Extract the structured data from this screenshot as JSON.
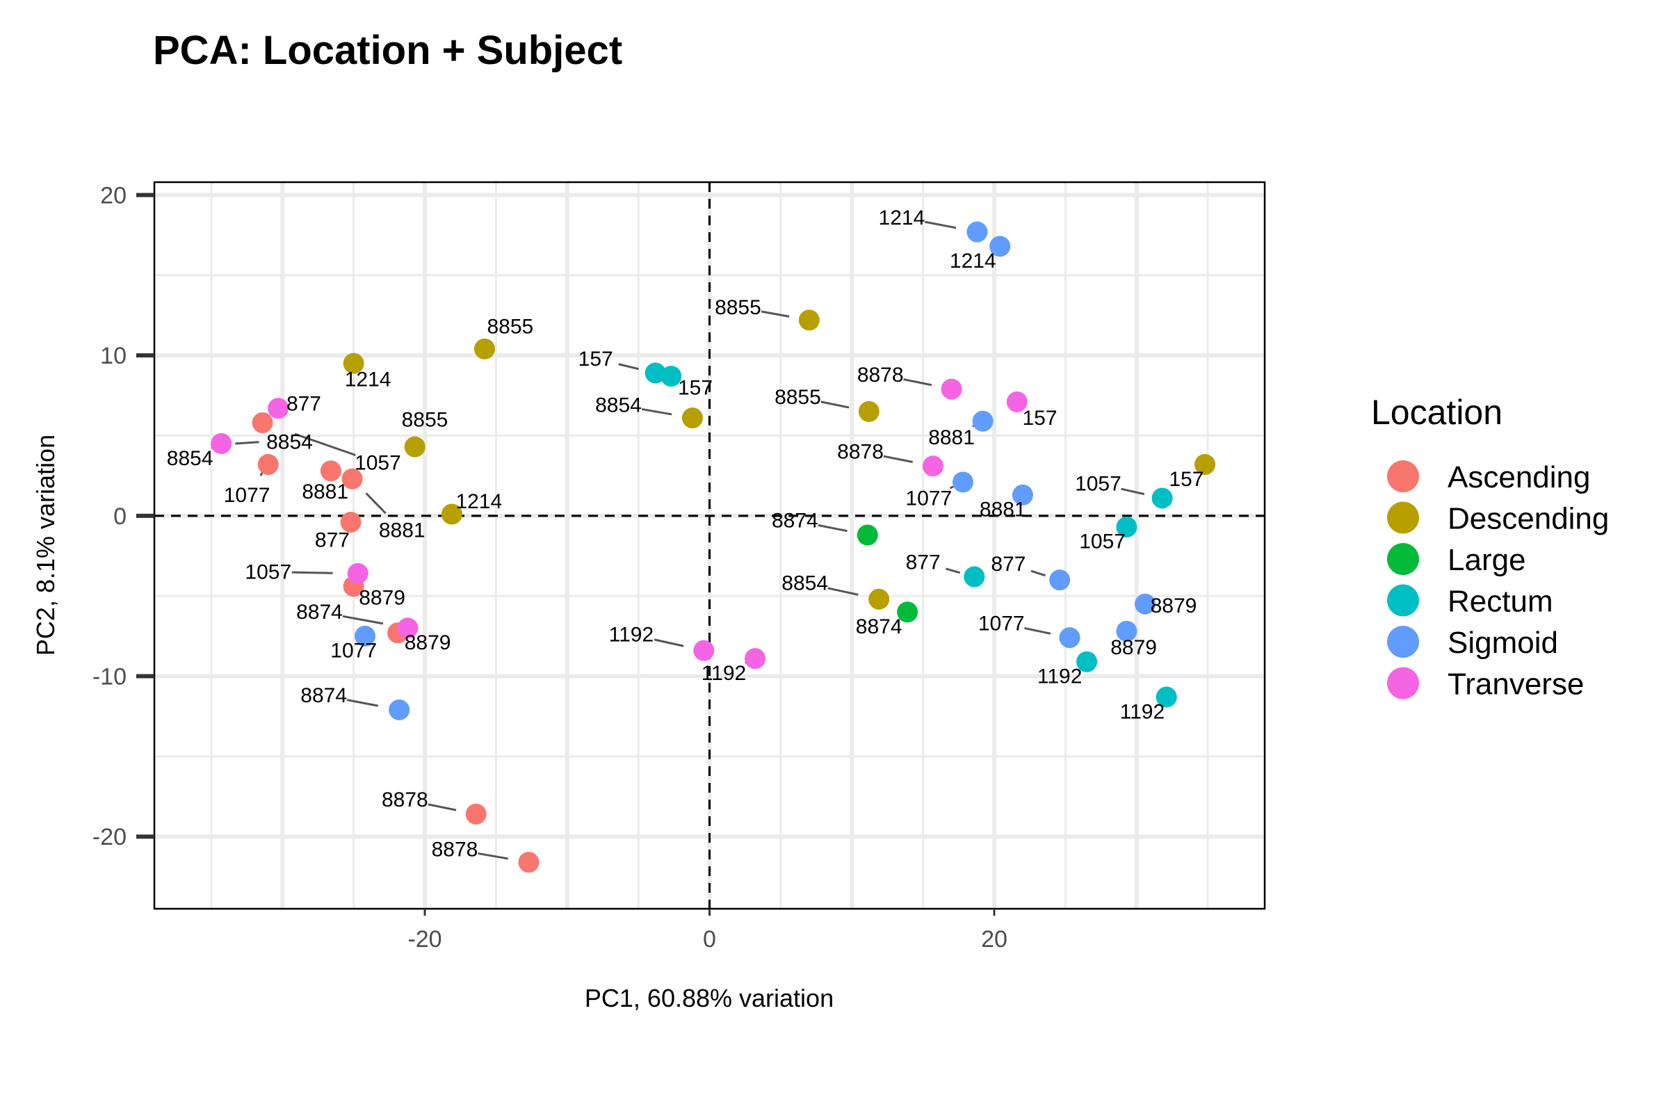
{
  "chart_data": {
    "type": "scatter",
    "title": "PCA: Location + Subject",
    "xlabel": "PC1, 60.88% variation",
    "ylabel": "PC2, 8.1% variation",
    "xlim": [
      -39,
      39
    ],
    "ylim": [
      -24.5,
      20.8
    ],
    "xticks": [
      -20,
      0,
      20
    ],
    "yticks": [
      -20,
      -10,
      0,
      10,
      20
    ],
    "grid": true,
    "reference_lines": {
      "x": 0,
      "y": 0,
      "style": "dashed"
    },
    "legend": {
      "title": "Location",
      "placement": "right",
      "entries": [
        {
          "name": "Ascending",
          "color": "#F8766D"
        },
        {
          "name": "Descending",
          "color": "#B79F00"
        },
        {
          "name": "Large",
          "color": "#00BA38"
        },
        {
          "name": "Rectum",
          "color": "#00BFC4"
        },
        {
          "name": "Sigmoid",
          "color": "#619CFF"
        },
        {
          "name": "Tranverse",
          "color": "#F564E3"
        }
      ]
    },
    "points": [
      {
        "x": -31.4,
        "y": 5.8,
        "location": "Ascending",
        "label": "1057",
        "lx": -23.3,
        "ly": 3.3
      },
      {
        "x": -31.0,
        "y": 3.2,
        "location": "Ascending",
        "label": "1077",
        "lx": -32.5,
        "ly": 1.3
      },
      {
        "x": -26.6,
        "y": 2.8,
        "location": "Ascending",
        "label": "8881",
        "lx": -27.0,
        "ly": 1.5
      },
      {
        "x": -25.1,
        "y": 2.3,
        "location": "Ascending",
        "label": "8881",
        "lx": -21.6,
        "ly": -0.9
      },
      {
        "x": -25.2,
        "y": -0.4,
        "location": "Ascending",
        "label": "877",
        "lx": -26.5,
        "ly": -1.5
      },
      {
        "x": -25.0,
        "y": -4.4,
        "location": "Ascending",
        "label": "8879",
        "lx": -23.0,
        "ly": -5.1
      },
      {
        "x": -21.9,
        "y": -7.3,
        "location": "Ascending",
        "label": "8879",
        "lx": -19.8,
        "ly": -7.9
      },
      {
        "x": -16.4,
        "y": -18.6,
        "location": "Ascending",
        "label": "8878",
        "lx": -21.4,
        "ly": -17.7
      },
      {
        "x": -12.7,
        "y": -21.6,
        "location": "Ascending",
        "label": "8878",
        "lx": -17.9,
        "ly": -20.8
      },
      {
        "x": -25.0,
        "y": 9.5,
        "location": "Descending",
        "label": "1214",
        "lx": -24.0,
        "ly": 8.5
      },
      {
        "x": -15.8,
        "y": 10.4,
        "location": "Descending",
        "label": "8855",
        "lx": -14.0,
        "ly": 11.8
      },
      {
        "x": -20.7,
        "y": 4.3,
        "location": "Descending",
        "label": "8855",
        "lx": -20.0,
        "ly": 6.0
      },
      {
        "x": -18.1,
        "y": 0.1,
        "location": "Descending",
        "label": "1214",
        "lx": -16.2,
        "ly": 0.9
      },
      {
        "x": -1.2,
        "y": 6.1,
        "location": "Descending",
        "label": "8854",
        "lx": -6.4,
        "ly": 6.9
      },
      {
        "x": 7.0,
        "y": 12.2,
        "location": "Descending",
        "label": "8855",
        "lx": 2.0,
        "ly": 13.0
      },
      {
        "x": 11.2,
        "y": 6.5,
        "location": "Descending",
        "label": "8855",
        "lx": 6.2,
        "ly": 7.4
      },
      {
        "x": 11.9,
        "y": -5.2,
        "location": "Descending",
        "label": "8854",
        "lx": 6.7,
        "ly": -4.2
      },
      {
        "x": 34.8,
        "y": 3.2,
        "location": "Descending",
        "label": "157",
        "lx": 33.5,
        "ly": 2.3
      },
      {
        "x": 11.1,
        "y": -1.2,
        "location": "Large",
        "label": "8874",
        "lx": 6.0,
        "ly": -0.3
      },
      {
        "x": 13.9,
        "y": -6.0,
        "location": "Large",
        "label": "8874",
        "lx": 11.9,
        "ly": -6.9
      },
      {
        "x": -3.8,
        "y": 8.9,
        "location": "Rectum",
        "label": "157",
        "lx": -8.0,
        "ly": 9.8
      },
      {
        "x": -2.7,
        "y": 8.7,
        "location": "Rectum",
        "label": "157",
        "lx": -1.0,
        "ly": 8.0
      },
      {
        "x": 18.6,
        "y": -3.8,
        "location": "Rectum",
        "label": "877",
        "lx": 15.0,
        "ly": -2.9
      },
      {
        "x": 26.5,
        "y": -9.1,
        "location": "Rectum",
        "label": "1192",
        "lx": 24.6,
        "ly": -10.0
      },
      {
        "x": 29.3,
        "y": -0.7,
        "location": "Rectum",
        "label": "1057",
        "lx": 27.6,
        "ly": -1.6
      },
      {
        "x": 31.8,
        "y": 1.1,
        "location": "Rectum",
        "label": "1057",
        "lx": 27.3,
        "ly": 2.0
      },
      {
        "x": 32.1,
        "y": -11.3,
        "location": "Rectum",
        "label": "1192",
        "lx": 30.4,
        "ly": -12.2
      },
      {
        "x": -24.2,
        "y": -7.5,
        "location": "Sigmoid",
        "label": "1077",
        "lx": -25.0,
        "ly": -8.4
      },
      {
        "x": -21.8,
        "y": -12.1,
        "location": "Sigmoid",
        "label": "8874",
        "lx": -27.1,
        "ly": -11.2
      },
      {
        "x": 18.8,
        "y": 17.7,
        "location": "Sigmoid",
        "label": "1214",
        "lx": 13.5,
        "ly": 18.6
      },
      {
        "x": 20.4,
        "y": 16.8,
        "location": "Sigmoid",
        "label": "1214",
        "lx": 18.5,
        "ly": 15.9
      },
      {
        "x": 19.2,
        "y": 5.9,
        "location": "Sigmoid",
        "label": "8881",
        "lx": 17.0,
        "ly": 4.9
      },
      {
        "x": 17.8,
        "y": 2.1,
        "location": "Sigmoid",
        "label": "1077",
        "lx": 15.4,
        "ly": 1.1
      },
      {
        "x": 22.0,
        "y": 1.3,
        "location": "Sigmoid",
        "label": "8881",
        "lx": 20.6,
        "ly": 0.4
      },
      {
        "x": 24.6,
        "y": -4.0,
        "location": "Sigmoid",
        "label": "877",
        "lx": 21.0,
        "ly": -3.0
      },
      {
        "x": 25.3,
        "y": -7.6,
        "location": "Sigmoid",
        "label": "1077",
        "lx": 20.5,
        "ly": -6.7
      },
      {
        "x": 29.3,
        "y": -7.2,
        "location": "Sigmoid",
        "label": "8879",
        "lx": 29.8,
        "ly": -8.2
      },
      {
        "x": 30.6,
        "y": -5.5,
        "location": "Sigmoid",
        "label": "8879",
        "lx": 32.6,
        "ly": -5.6
      },
      {
        "x": -34.3,
        "y": 4.5,
        "location": "Tranverse",
        "label": "8854",
        "lx": -36.5,
        "ly": 3.6
      },
      {
        "x": -30.3,
        "y": 6.7,
        "location": "Tranverse",
        "label": "877",
        "lx": -28.5,
        "ly": 7.0
      },
      {
        "x": -24.7,
        "y": -3.6,
        "location": "Tranverse",
        "label": "1057",
        "lx": -31.0,
        "ly": -3.5
      },
      {
        "x": -21.2,
        "y": -7.0,
        "location": "Tranverse",
        "label": "8874",
        "lx": -27.4,
        "ly": -6.0
      },
      {
        "x": -0.4,
        "y": -8.4,
        "location": "Tranverse",
        "label": "1192",
        "lx": -5.5,
        "ly": -7.4
      },
      {
        "x": 3.2,
        "y": -8.9,
        "location": "Tranverse",
        "label": "1192",
        "lx": 1.0,
        "ly": -9.8
      },
      {
        "x": 17.0,
        "y": 7.9,
        "location": "Tranverse",
        "label": "8878",
        "lx": 12.0,
        "ly": 8.8
      },
      {
        "x": 21.6,
        "y": 7.1,
        "location": "Tranverse",
        "label": "157",
        "lx": 23.2,
        "ly": 6.1
      },
      {
        "x": 15.7,
        "y": 3.1,
        "location": "Tranverse",
        "label": "8878",
        "lx": 10.6,
        "ly": 4.0
      }
    ],
    "extra_labels": [
      {
        "label": "8854",
        "lx": -29.5,
        "ly": 4.6,
        "tx": -34.3,
        "ty": 4.5
      }
    ]
  }
}
